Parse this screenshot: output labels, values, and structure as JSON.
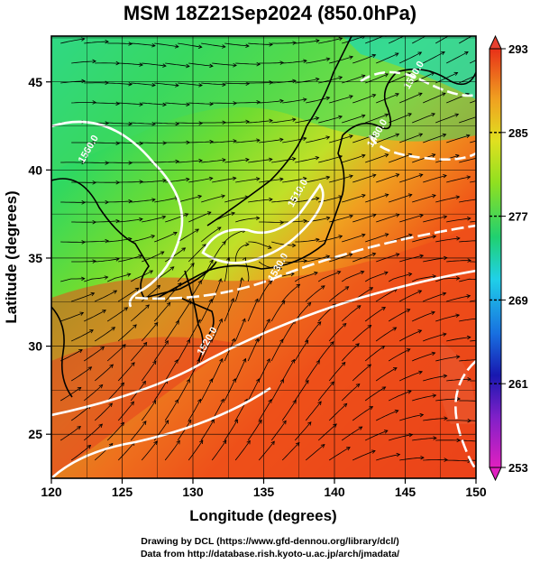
{
  "title": "MSM 18Z21Sep2024 (850.0hPa)",
  "x_axis": {
    "label": "Longitude (degrees)",
    "ticks": [
      {
        "label": "120",
        "value": 120
      },
      {
        "label": "125",
        "value": 125
      },
      {
        "label": "130",
        "value": 130
      },
      {
        "label": "135",
        "value": 135
      },
      {
        "label": "140",
        "value": 140
      },
      {
        "label": "145",
        "value": 145
      },
      {
        "label": "150",
        "value": 150
      }
    ],
    "range": [
      120,
      150
    ]
  },
  "y_axis": {
    "label": "Latitude  (degrees)",
    "ticks": [
      {
        "label": "25",
        "value": 25
      },
      {
        "label": "30",
        "value": 30
      },
      {
        "label": "35",
        "value": 35
      },
      {
        "label": "40",
        "value": 40
      },
      {
        "label": "45",
        "value": 45
      }
    ],
    "range": [
      22.5,
      47.6
    ]
  },
  "colorbar": {
    "ticks": [
      {
        "label": "293",
        "value": 293
      },
      {
        "label": "285",
        "value": 285
      },
      {
        "label": "277",
        "value": 277
      },
      {
        "label": "269",
        "value": 269
      },
      {
        "label": "261",
        "value": 261
      },
      {
        "label": "253",
        "value": 253
      }
    ],
    "range": [
      253,
      293
    ],
    "colors": [
      "#e020c0",
      "#1818b0",
      "#1870e0",
      "#20d0e8",
      "#20d070",
      "#90e020",
      "#e0e020",
      "#f0a020",
      "#f04818",
      "#e83018"
    ]
  },
  "contour_labels": [
    {
      "text": "1560.0",
      "lon": 122.8,
      "lat": 41.1
    },
    {
      "text": "1480.0",
      "lon": 143.2,
      "lat": 42.0
    },
    {
      "text": "1500.0",
      "lon": 145.8,
      "lat": 45.3
    },
    {
      "text": "1510.0",
      "lon": 137.6,
      "lat": 38.6
    },
    {
      "text": "1530.0",
      "lon": 136.2,
      "lat": 34.4
    },
    {
      "text": "1520.0",
      "lon": 131.2,
      "lat": 30.2
    }
  ],
  "footer": {
    "line1": "Drawing by DCL (https://www.gfd-dennou.org/library/dcl/)",
    "line2": "Data from http://database.rish.kyoto-u.ac.jp/arch/jmadata/"
  }
}
